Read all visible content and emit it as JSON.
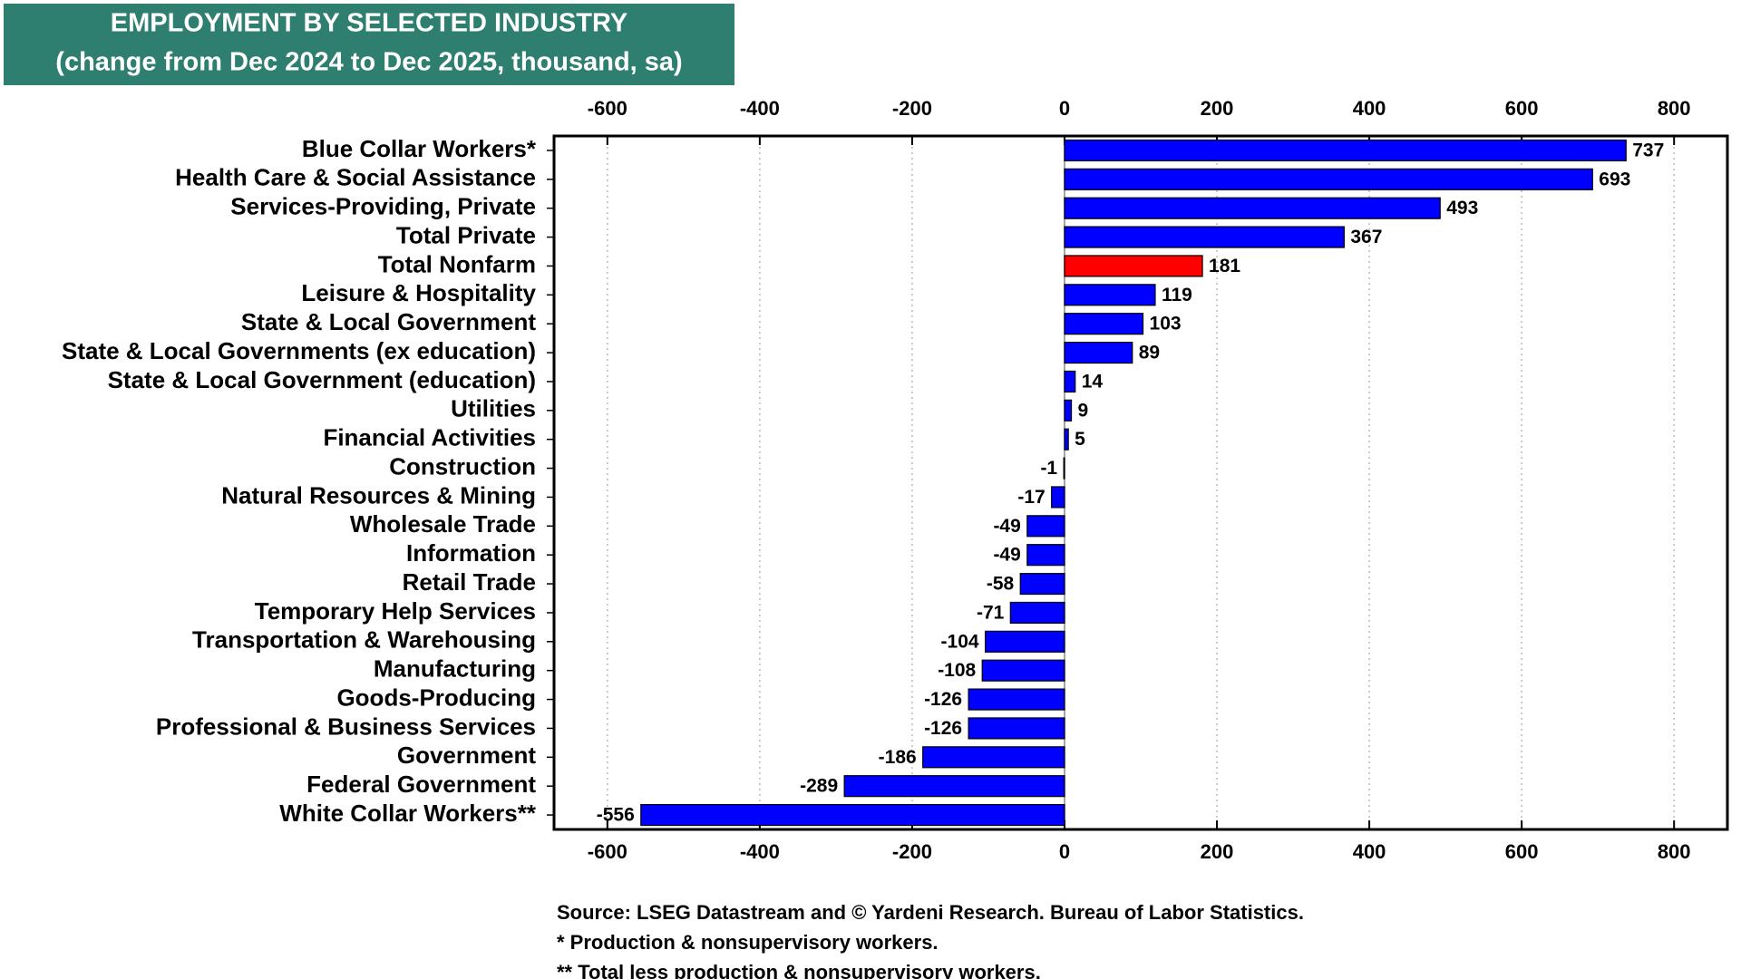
{
  "chart_data": {
    "type": "barh",
    "title": "EMPLOYMENT BY SELECTED INDUSTRY",
    "subtitle": "(change from Dec 2024 to Dec 2025, thousand, sa)",
    "categories": [
      "Blue Collar Workers*",
      "Health Care & Social Assistance",
      "Services-Providing, Private",
      "Total Private",
      "Total Nonfarm",
      "Leisure & Hospitality",
      "State & Local Government",
      "State & Local Governments (ex education)",
      "State & Local Government (education)",
      "Utilities",
      "Financial Activities",
      "Construction",
      "Natural Resources & Mining",
      "Wholesale Trade",
      "Information",
      "Retail Trade",
      "Temporary Help Services",
      "Transportation & Warehousing",
      "Manufacturing",
      "Goods-Producing",
      "Professional & Business Services",
      "Government",
      "Federal Government",
      "White Collar Workers**"
    ],
    "values": [
      737,
      693,
      493,
      367,
      181,
      119,
      103,
      89,
      14,
      9,
      5,
      -1,
      -17,
      -49,
      -49,
      -58,
      -71,
      -104,
      -108,
      -126,
      -126,
      -186,
      -289,
      -556
    ],
    "colors": [
      "#0000ff",
      "#0000ff",
      "#0000ff",
      "#0000ff",
      "#ff0000",
      "#0000ff",
      "#0000ff",
      "#0000ff",
      "#0000ff",
      "#0000ff",
      "#0000ff",
      "#0000ff",
      "#0000ff",
      "#0000ff",
      "#0000ff",
      "#0000ff",
      "#0000ff",
      "#0000ff",
      "#0000ff",
      "#0000ff",
      "#0000ff",
      "#0000ff",
      "#0000ff",
      "#0000ff"
    ],
    "xlim": [
      -670,
      870
    ],
    "xticks": [
      -600,
      -400,
      -200,
      0,
      200,
      400,
      600,
      800
    ],
    "grid": true,
    "notes": [
      "Source: LSEG Datastream and © Yardeni Research. Bureau of Labor Statistics.",
      "* Production & nonsupervisory workers.",
      "** Total less production & nonsupervisory workers."
    ]
  }
}
